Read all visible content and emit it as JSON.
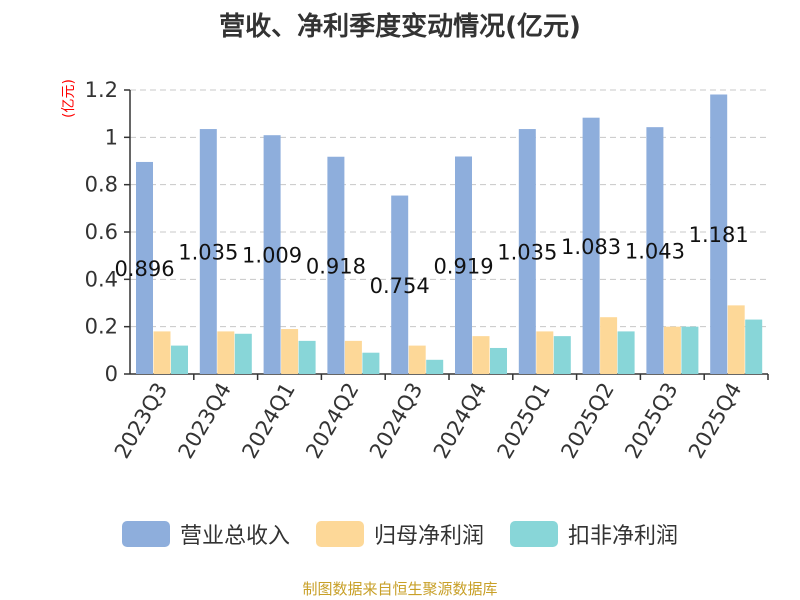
{
  "title": "营收、净利季度变动情况(亿元)",
  "unit_label": "(亿元)",
  "source": "制图数据来自恒生聚源数据库",
  "colors": {
    "revenue": "#8eaedc",
    "net_profit": "#fdd898",
    "deducted_profit": "#88d6d8",
    "grid": "#c8c8c8",
    "axis": "#333333"
  },
  "chart_data": {
    "type": "bar",
    "title": "营收、净利季度变动情况(亿元)",
    "ylabel": "(亿元)",
    "ylim": [
      0,
      1.2
    ],
    "yticks": [
      "0",
      "0.2",
      "0.4",
      "0.6",
      "0.8",
      "1",
      "1.2"
    ],
    "grid": true,
    "legend_position": "bottom",
    "categories": [
      "2023Q3",
      "2023Q4",
      "2024Q1",
      "2024Q2",
      "2024Q3",
      "2024Q4",
      "2025Q1",
      "2025Q2",
      "2025Q3",
      "2025Q4"
    ],
    "series": [
      {
        "name": "营业总收入",
        "values": [
          0.896,
          1.035,
          1.009,
          0.918,
          0.754,
          0.919,
          1.035,
          1.083,
          1.043,
          1.181
        ]
      },
      {
        "name": "归母净利润",
        "values": [
          0.18,
          0.18,
          0.19,
          0.14,
          0.12,
          0.16,
          0.18,
          0.24,
          0.2,
          0.29
        ]
      },
      {
        "name": "扣非净利润",
        "values": [
          0.12,
          0.17,
          0.14,
          0.09,
          0.06,
          0.11,
          0.16,
          0.18,
          0.2,
          0.23
        ]
      }
    ],
    "data_labels": [
      "0.896",
      "1.035",
      "1.009",
      "0.918",
      "0.754",
      "0.919",
      "1.035",
      "1.083",
      "1.043",
      "1.181"
    ]
  }
}
